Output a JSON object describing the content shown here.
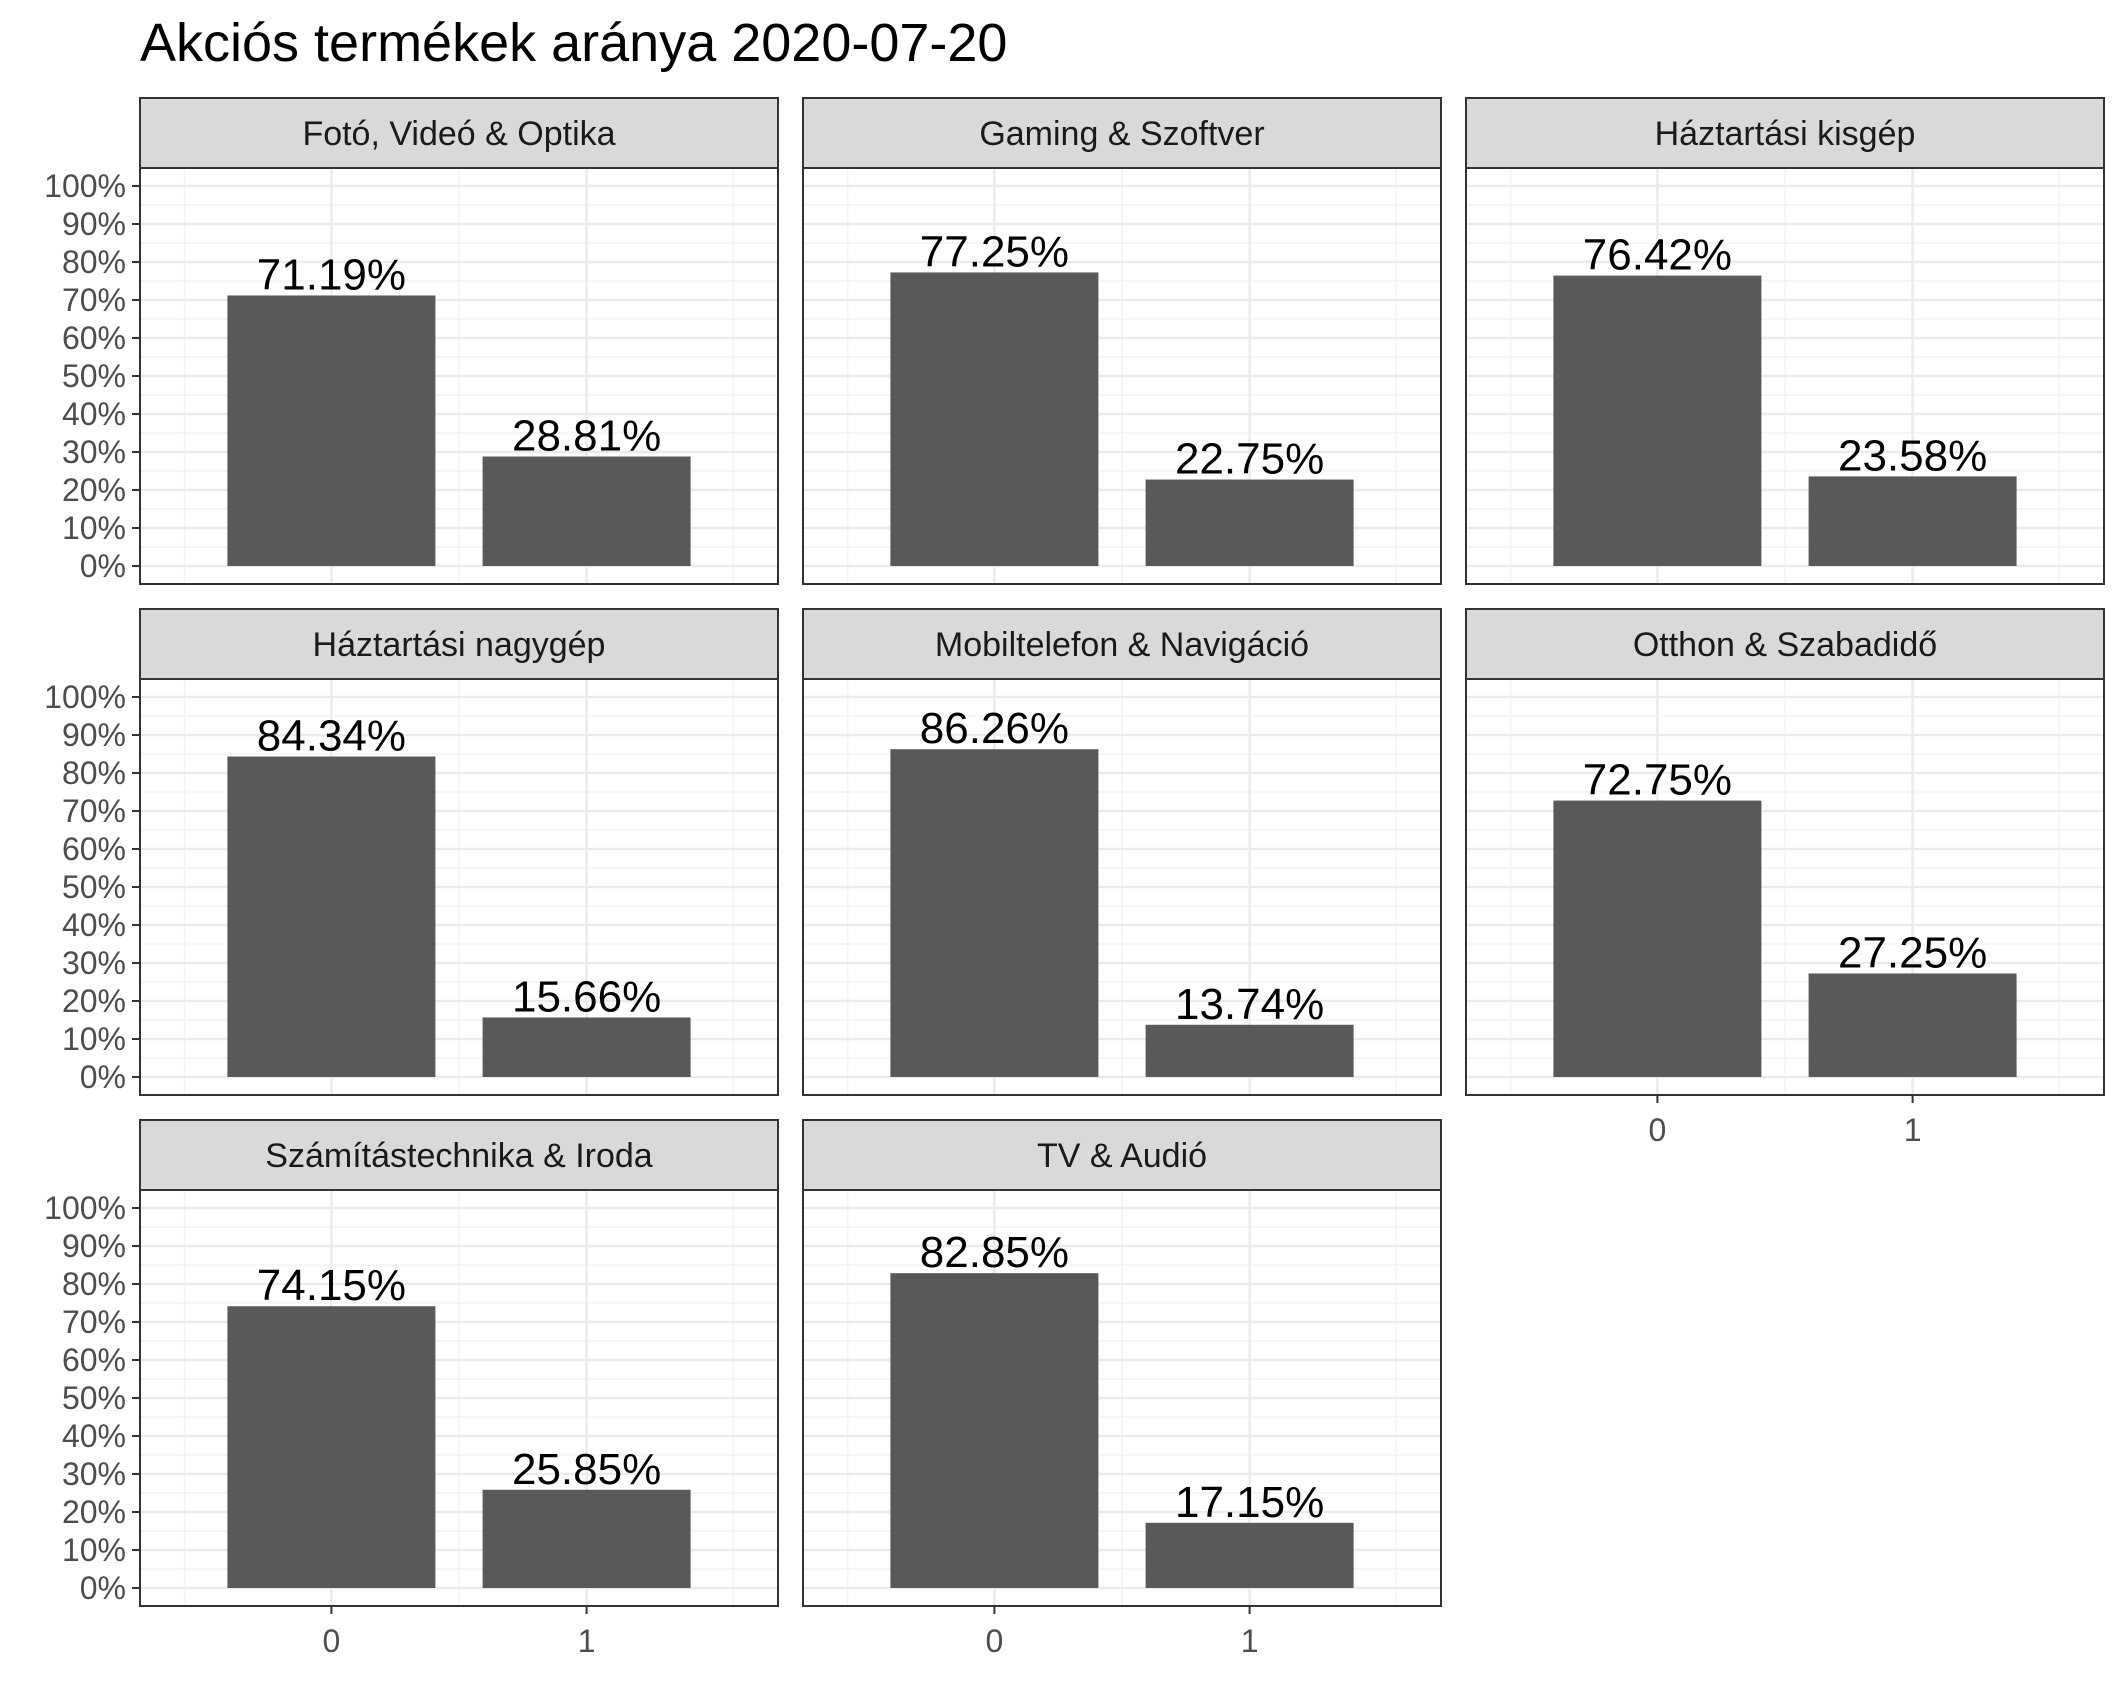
{
  "chart_data": {
    "type": "bar",
    "title": "Akciós termékek aránya 2020-07-20",
    "layout": "facet-wrap-3-columns",
    "categories": [
      "0",
      "1"
    ],
    "ylim": [
      0,
      100
    ],
    "yticks": [
      "0%",
      "10%",
      "20%",
      "30%",
      "40%",
      "50%",
      "60%",
      "70%",
      "80%",
      "90%",
      "100%"
    ],
    "grid": true,
    "legend": "none",
    "colors": {
      "bar": "#595959",
      "strip": "#d9d9d9",
      "panel_border": "#333333",
      "grid_major": "#ebebeb",
      "grid_minor": "#f4f4f4"
    },
    "facets": [
      {
        "name": "Fotó, Videó & Optika",
        "values": [
          71.19,
          28.81
        ],
        "labels": [
          "71.19%",
          "28.81%"
        ]
      },
      {
        "name": "Gaming & Szoftver",
        "values": [
          77.25,
          22.75
        ],
        "labels": [
          "77.25%",
          "22.75%"
        ]
      },
      {
        "name": "Háztartási kisgép",
        "values": [
          76.42,
          23.58
        ],
        "labels": [
          "76.42%",
          "23.58%"
        ]
      },
      {
        "name": "Háztartási nagygép",
        "values": [
          84.34,
          15.66
        ],
        "labels": [
          "84.34%",
          "15.66%"
        ]
      },
      {
        "name": "Mobiltelefon & Navigáció",
        "values": [
          86.26,
          13.74
        ],
        "labels": [
          "86.26%",
          "13.74%"
        ]
      },
      {
        "name": "Otthon & Szabadidő",
        "values": [
          72.75,
          27.25
        ],
        "labels": [
          "72.75%",
          "27.25%"
        ]
      },
      {
        "name": "Számítástechnika & Iroda",
        "values": [
          74.15,
          25.85
        ],
        "labels": [
          "74.15%",
          "25.85%"
        ]
      },
      {
        "name": "TV & Audió",
        "values": [
          82.85,
          17.15
        ],
        "labels": [
          "82.85%",
          "17.15%"
        ]
      }
    ]
  }
}
